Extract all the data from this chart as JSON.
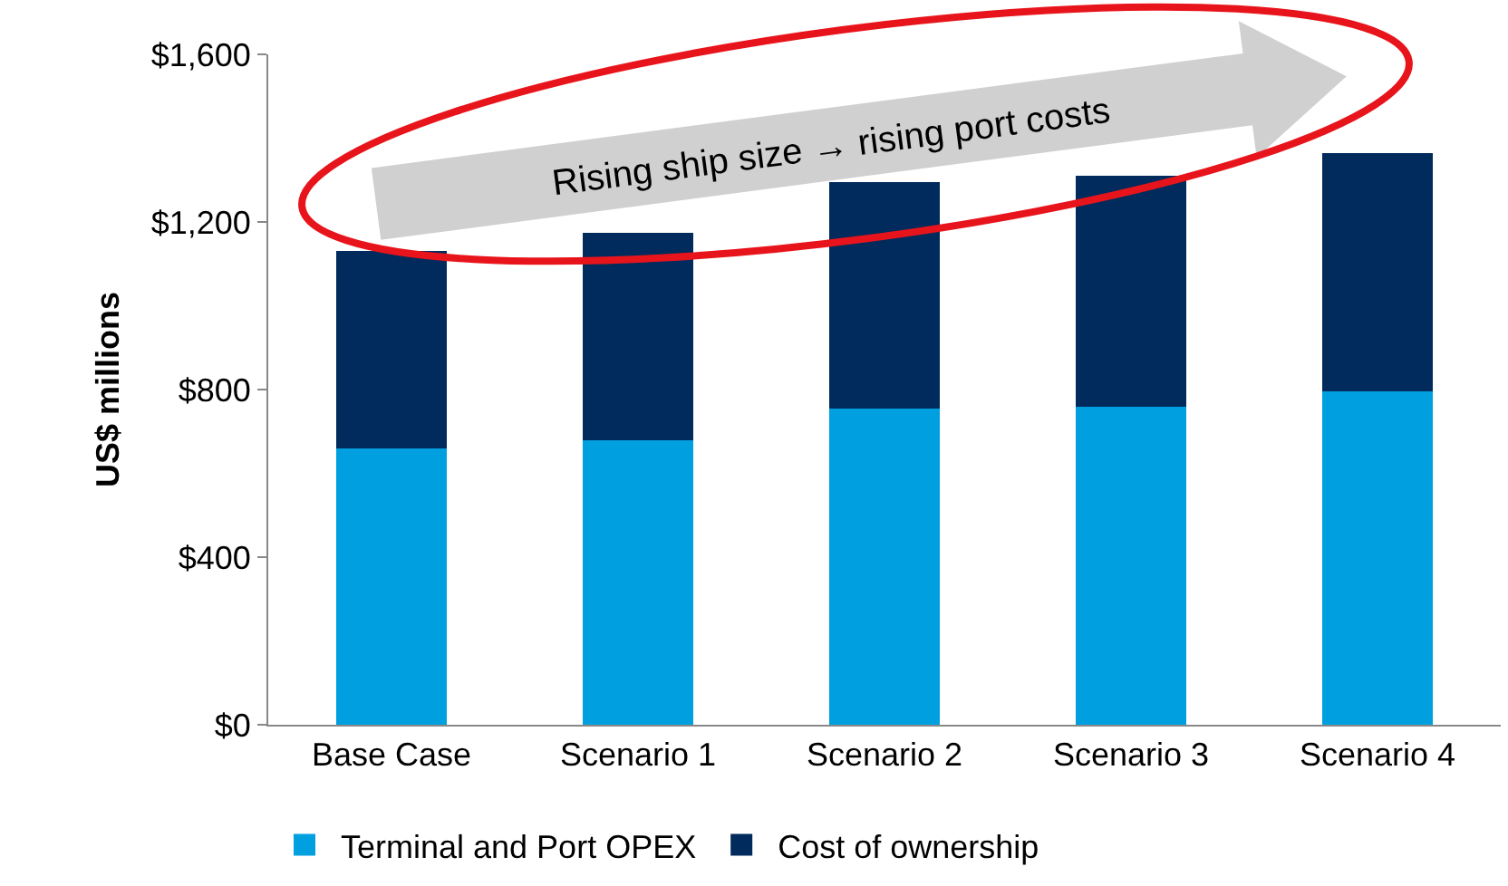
{
  "chart_data": {
    "type": "bar",
    "stacked": true,
    "categories": [
      "Base Case",
      "Scenario 1",
      "Scenario 2",
      "Scenario 3",
      "Scenario 4"
    ],
    "series": [
      {
        "name": "Terminal and Port OPEX",
        "color": "#009fdf",
        "values": [
          660,
          680,
          755,
          760,
          795
        ]
      },
      {
        "name": "Cost of ownership",
        "color": "#002b5c",
        "values": [
          470,
          495,
          540,
          550,
          570
        ]
      }
    ],
    "ylabel": "US$ millions",
    "ylim": [
      0,
      1600
    ],
    "yticks": [
      {
        "value": 0,
        "label": "$0"
      },
      {
        "value": 400,
        "label": "$400"
      },
      {
        "value": 800,
        "label": "$800"
      },
      {
        "value": 1200,
        "label": "$1,200"
      },
      {
        "value": 1600,
        "label": "$1,600"
      }
    ],
    "grid": false,
    "legend": "bottom",
    "annotations": [
      "Rising ship size → rising port costs"
    ]
  }
}
